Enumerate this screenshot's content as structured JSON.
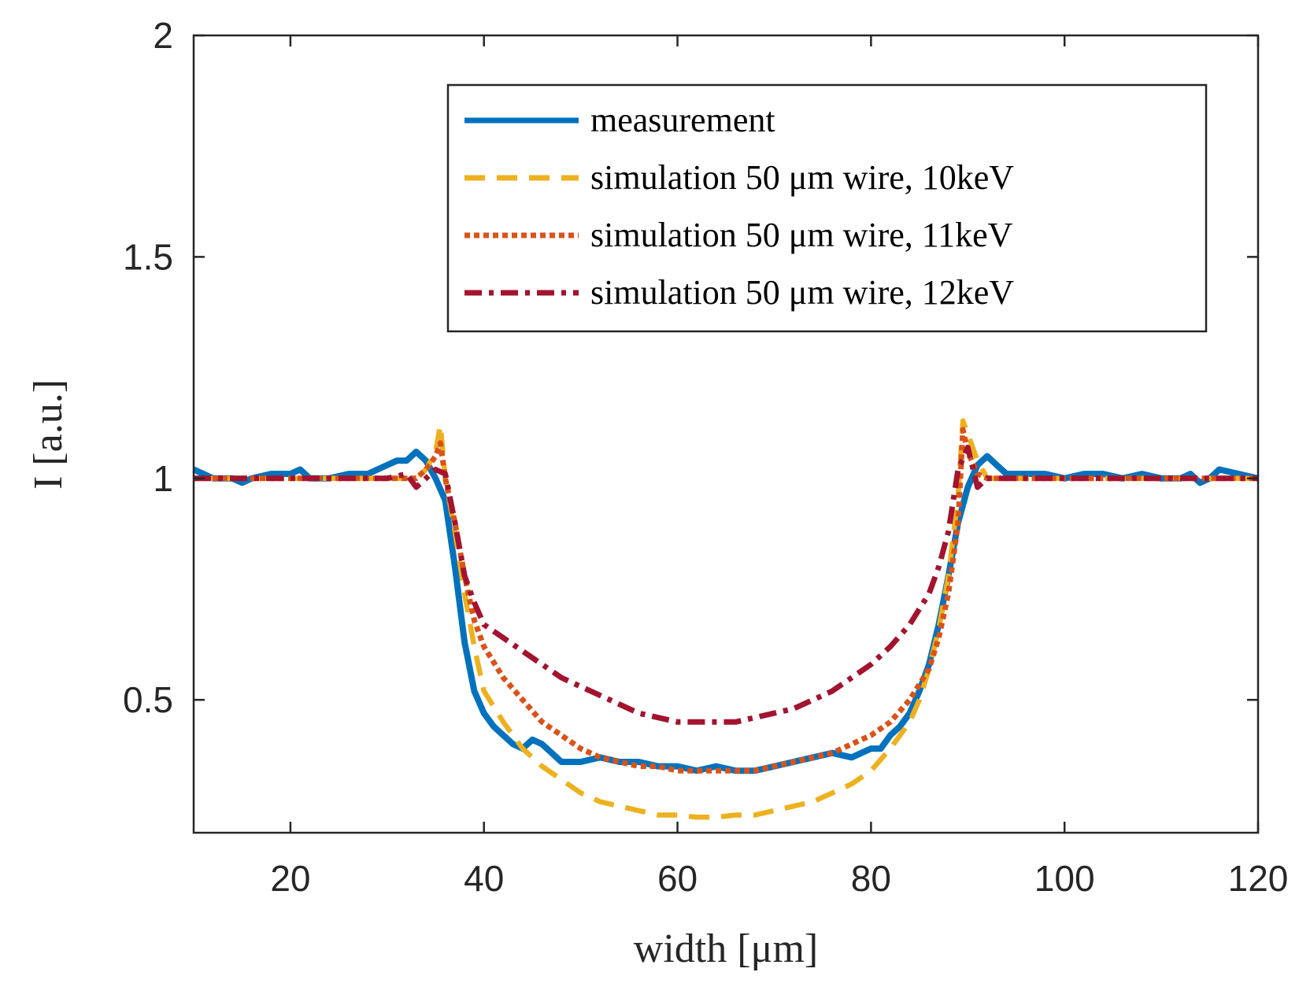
{
  "chart_data": {
    "type": "line",
    "title": "",
    "xlabel": "width [μm]",
    "ylabel": "I [a.u.]",
    "xlim": [
      10,
      120
    ],
    "ylim": [
      0.2,
      2
    ],
    "xticks": [
      20,
      40,
      60,
      80,
      100,
      120
    ],
    "xtick_labels": [
      "20",
      "40",
      "60",
      "80",
      "100",
      "120"
    ],
    "yticks": [
      0.5,
      1,
      1.5,
      2
    ],
    "ytick_labels": [
      "0.5",
      "1",
      "1.5",
      "2"
    ],
    "grid": false,
    "legend_position": "top-right",
    "series": [
      {
        "name": "measurement",
        "color": "#0072BD",
        "style": "solid",
        "x": [
          10,
          12,
          14,
          15,
          16,
          18,
          20,
          21,
          22,
          24,
          26,
          28,
          30,
          31,
          32,
          33,
          34,
          35,
          36,
          37,
          38,
          39,
          40,
          41,
          42,
          43,
          44,
          45,
          46,
          47,
          48,
          49,
          50,
          52,
          54,
          56,
          58,
          60,
          62,
          64,
          66,
          68,
          70,
          72,
          74,
          76,
          78,
          80,
          81,
          82,
          83,
          84,
          85,
          86,
          87,
          88,
          89,
          90,
          91,
          92,
          93,
          94,
          96,
          98,
          100,
          102,
          104,
          106,
          108,
          110,
          112,
          113,
          114,
          115,
          116,
          118,
          120
        ],
        "y": [
          1.02,
          1.0,
          1.0,
          0.99,
          1.0,
          1.01,
          1.01,
          1.02,
          1.0,
          1.0,
          1.01,
          1.01,
          1.03,
          1.04,
          1.04,
          1.06,
          1.04,
          1.0,
          0.95,
          0.8,
          0.63,
          0.52,
          0.47,
          0.44,
          0.42,
          0.4,
          0.39,
          0.41,
          0.4,
          0.38,
          0.36,
          0.36,
          0.36,
          0.37,
          0.36,
          0.36,
          0.35,
          0.35,
          0.34,
          0.35,
          0.34,
          0.34,
          0.35,
          0.36,
          0.37,
          0.38,
          0.37,
          0.39,
          0.39,
          0.42,
          0.44,
          0.47,
          0.52,
          0.58,
          0.67,
          0.78,
          0.9,
          0.98,
          1.03,
          1.05,
          1.03,
          1.01,
          1.01,
          1.01,
          1.0,
          1.01,
          1.01,
          1.0,
          1.01,
          1.0,
          1.0,
          1.01,
          0.99,
          1.0,
          1.02,
          1.01,
          1.0
        ]
      },
      {
        "name": "simulation 50 μm wire, 10keV",
        "color": "#EDB120",
        "style": "dashed",
        "x": [
          10,
          20,
          30,
          33,
          34,
          35,
          35.5,
          36,
          37,
          38,
          39,
          40,
          42,
          44,
          46,
          48,
          50,
          52,
          54,
          56,
          58,
          60,
          62,
          64,
          66,
          68,
          70,
          72,
          74,
          76,
          78,
          80,
          82,
          84,
          85,
          86,
          87,
          88,
          89,
          89.5,
          90,
          91,
          92,
          93,
          94,
          100,
          110,
          120
        ],
        "y": [
          1.0,
          1.0,
          1.0,
          1.0,
          1.02,
          1.06,
          1.12,
          1.0,
          0.88,
          0.74,
          0.62,
          0.52,
          0.45,
          0.39,
          0.35,
          0.32,
          0.29,
          0.27,
          0.26,
          0.25,
          0.24,
          0.24,
          0.235,
          0.235,
          0.24,
          0.24,
          0.25,
          0.26,
          0.27,
          0.29,
          0.31,
          0.34,
          0.39,
          0.45,
          0.5,
          0.57,
          0.66,
          0.78,
          0.96,
          1.13,
          1.1,
          1.04,
          1.0,
          1.0,
          1.0,
          1.0,
          1.0,
          1.0
        ]
      },
      {
        "name": "simulation 50 μm wire, 11keV",
        "color": "#D95319",
        "style": "dotted",
        "x": [
          10,
          20,
          30,
          33,
          34,
          35,
          35.5,
          36,
          37,
          38,
          39,
          40,
          42,
          44,
          46,
          48,
          50,
          52,
          54,
          56,
          58,
          60,
          62,
          64,
          66,
          68,
          70,
          72,
          74,
          76,
          78,
          80,
          82,
          84,
          86,
          87,
          88,
          89,
          89.5,
          90,
          91,
          92,
          94,
          100,
          110,
          120
        ],
        "y": [
          1.0,
          1.0,
          1.0,
          1.0,
          1.02,
          1.05,
          1.08,
          1.0,
          0.9,
          0.78,
          0.68,
          0.62,
          0.55,
          0.5,
          0.45,
          0.42,
          0.39,
          0.37,
          0.36,
          0.35,
          0.35,
          0.34,
          0.34,
          0.34,
          0.34,
          0.34,
          0.35,
          0.36,
          0.37,
          0.38,
          0.4,
          0.42,
          0.45,
          0.5,
          0.57,
          0.64,
          0.74,
          0.9,
          1.11,
          1.06,
          1.01,
          1.0,
          1.0,
          1.0,
          1.0,
          1.0
        ]
      },
      {
        "name": "simulation 50 μm wire, 12keV",
        "color": "#A2142F",
        "style": "dashdot",
        "x": [
          10,
          20,
          30,
          32,
          33,
          34,
          35,
          36,
          37,
          38,
          39,
          40,
          42,
          44,
          46,
          48,
          50,
          52,
          54,
          56,
          58,
          60,
          62,
          64,
          66,
          68,
          70,
          72,
          74,
          76,
          78,
          80,
          82,
          84,
          86,
          87,
          88,
          89,
          90,
          91,
          92,
          94,
          100,
          110,
          120
        ],
        "y": [
          1.0,
          1.0,
          1.0,
          1.01,
          0.98,
          1.0,
          1.02,
          1.01,
          0.9,
          0.78,
          0.72,
          0.67,
          0.64,
          0.61,
          0.58,
          0.55,
          0.53,
          0.51,
          0.49,
          0.47,
          0.46,
          0.45,
          0.45,
          0.45,
          0.45,
          0.46,
          0.47,
          0.48,
          0.5,
          0.52,
          0.55,
          0.58,
          0.62,
          0.67,
          0.74,
          0.8,
          0.88,
          1.02,
          1.07,
          0.98,
          1.0,
          1.0,
          1.0,
          1.0,
          1.0
        ]
      }
    ]
  }
}
